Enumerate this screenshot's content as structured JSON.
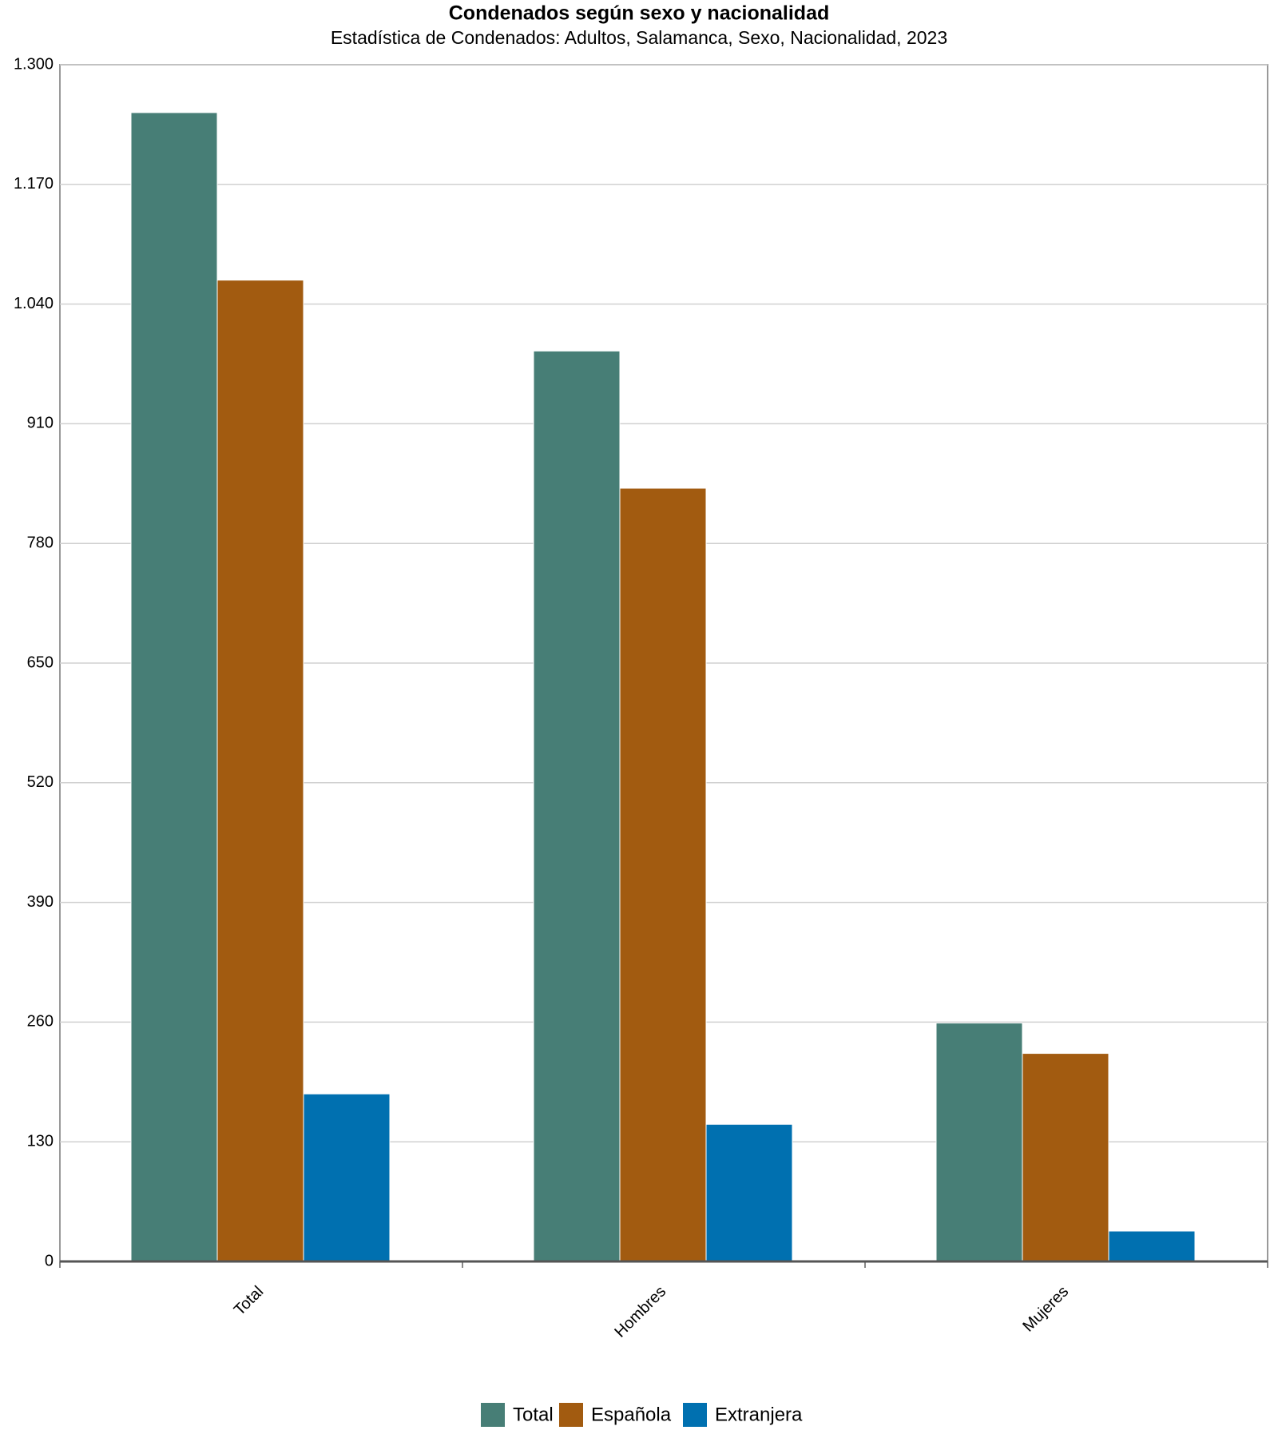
{
  "chart_data": {
    "type": "bar",
    "title": "Condenados según sexo y nacionalidad",
    "subtitle": "Estadística de Condenados: Adultos, Salamanca, Sexo, Nacionalidad, 2023",
    "categories": [
      "Total",
      "Hombres",
      "Mujeres"
    ],
    "series": [
      {
        "name": "Total",
        "color": "#477e76",
        "values": [
          1248,
          989,
          259
        ]
      },
      {
        "name": "Española",
        "color": "#a25b10",
        "values": [
          1066,
          840,
          226
        ]
      },
      {
        "name": "Extranjera",
        "color": "#0070b0",
        "values": [
          182,
          149,
          33
        ]
      }
    ],
    "ylim": [
      0,
      1300
    ],
    "yticks": [
      0,
      130,
      260,
      390,
      520,
      650,
      780,
      910,
      {
        "value": 1040,
        "label": "1.040"
      },
      {
        "value": 1170,
        "label": "1.170"
      },
      {
        "value": 1300,
        "label": "1.300"
      }
    ],
    "grid": true,
    "legend": "bottom"
  }
}
